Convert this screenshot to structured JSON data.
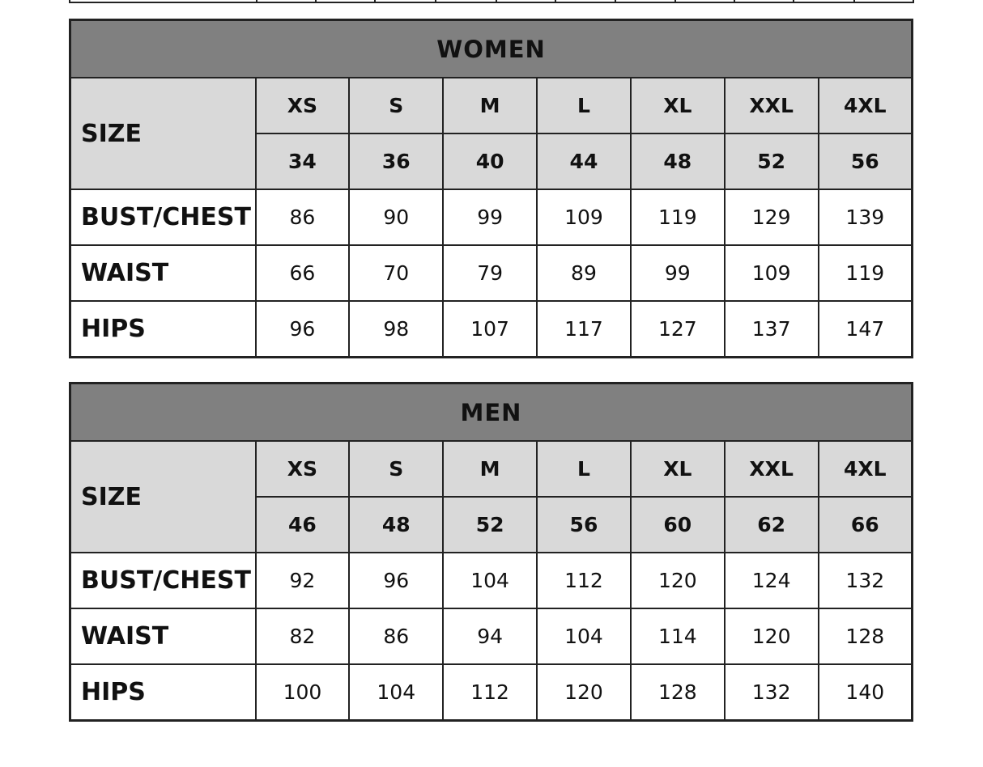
{
  "colors": {
    "title_bg": "#808080",
    "subheader_bg": "#d9d9d9",
    "border": "#222222"
  },
  "tables": [
    {
      "title": "WOMEN",
      "size_label": "SIZE",
      "sizes": [
        "XS",
        "S",
        "M",
        "L",
        "XL",
        "XXL",
        "4XL"
      ],
      "numbers": [
        "34",
        "36",
        "40",
        "44",
        "48",
        "52",
        "56"
      ],
      "rows": [
        {
          "label": "BUST/CHEST",
          "values": [
            "86",
            "90",
            "99",
            "109",
            "119",
            "129",
            "139"
          ]
        },
        {
          "label": "WAIST",
          "values": [
            "66",
            "70",
            "79",
            "89",
            "99",
            "109",
            "119"
          ]
        },
        {
          "label": "HIPS",
          "values": [
            "96",
            "98",
            "107",
            "117",
            "127",
            "137",
            "147"
          ]
        }
      ]
    },
    {
      "title": "MEN",
      "size_label": "SIZE",
      "sizes": [
        "XS",
        "S",
        "M",
        "L",
        "XL",
        "XXL",
        "4XL"
      ],
      "numbers": [
        "46",
        "48",
        "52",
        "56",
        "60",
        "62",
        "66"
      ],
      "rows": [
        {
          "label": "BUST/CHEST",
          "values": [
            "92",
            "96",
            "104",
            "112",
            "120",
            "124",
            "132"
          ]
        },
        {
          "label": "WAIST",
          "values": [
            "82",
            "86",
            "94",
            "104",
            "114",
            "120",
            "128"
          ]
        },
        {
          "label": "HIPS",
          "values": [
            "100",
            "104",
            "112",
            "120",
            "128",
            "132",
            "140"
          ]
        }
      ]
    }
  ]
}
